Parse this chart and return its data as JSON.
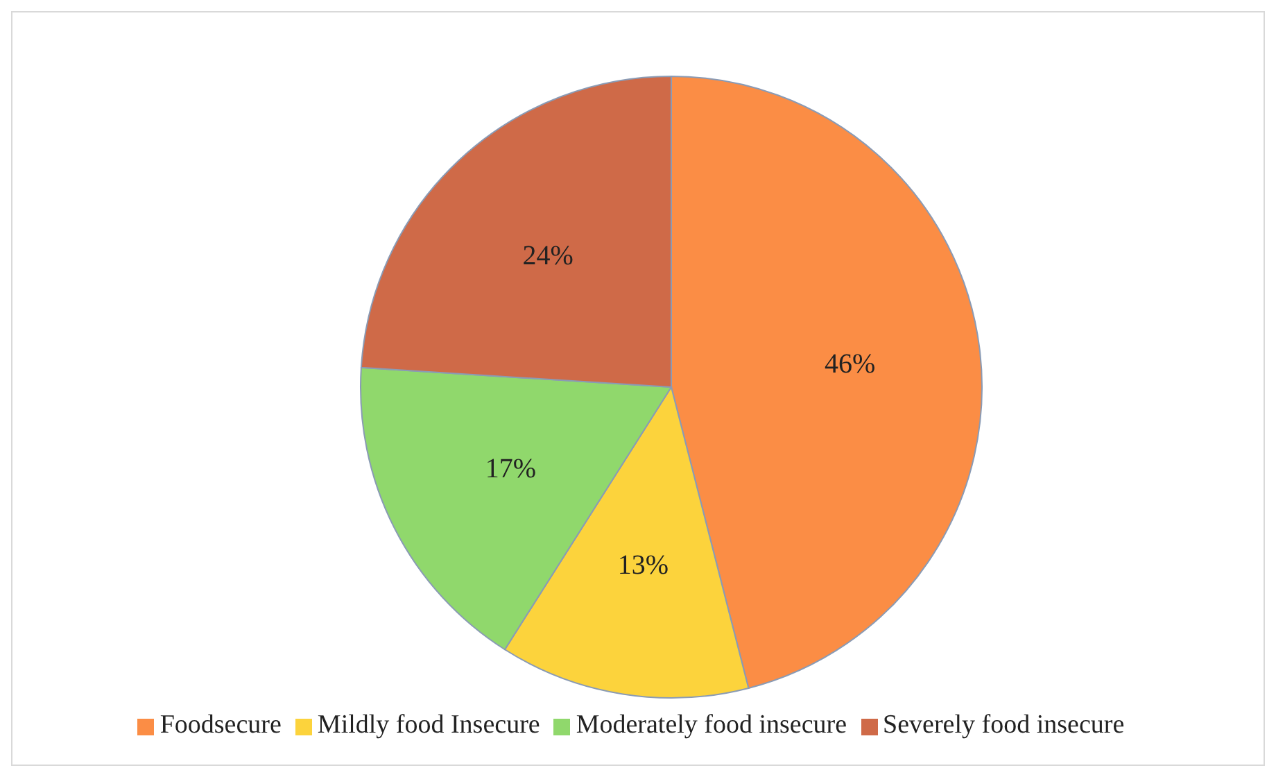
{
  "chart_data": {
    "type": "pie",
    "categories": [
      "Foodsecure",
      "Mildly food Insecure",
      "Moderately food insecure",
      "Severely food insecure"
    ],
    "values": [
      46,
      13,
      17,
      24
    ],
    "colors": [
      "#fb8d45",
      "#fcd33c",
      "#90d86c",
      "#cf6a48"
    ],
    "value_labels": [
      "46%",
      "13%",
      "17%",
      "24%"
    ],
    "legend": "bottom"
  }
}
